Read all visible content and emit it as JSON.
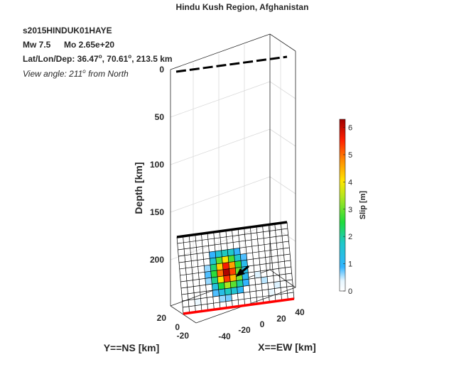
{
  "title": "Hindu Kush Region, Afghanistan",
  "event_id": "s2015HINDUK01HAYE",
  "magnitude": "Mw 7.5",
  "moment": "Mo 2.65e+20",
  "location": {
    "prefix": "Lat/Lon/Dep: ",
    "lat": "36.47",
    "lon": "70.61",
    "dep_suffix": ", 213.5 km",
    "degree_mark": "o"
  },
  "view_angle": {
    "prefix": "View angle: 211",
    "degree_mark": "o",
    "suffix": " from North"
  },
  "colors": {
    "top_edge": "#000000",
    "bottom_edge": "#ff0000",
    "arrow": "#000000",
    "grid": "#000000"
  },
  "chart_data": {
    "type": "heatmap",
    "zlabel": "Depth [km]",
    "xlabel": "X==EW [km]",
    "ylabel": "Y==NS [km]",
    "z_ticks": [
      "0",
      "50",
      "100",
      "150",
      "200"
    ],
    "x_ticks": [
      "-40",
      "-20",
      "0",
      "20",
      "40"
    ],
    "y_ticks": [
      "20",
      "0",
      "-20"
    ],
    "colorbar": {
      "label": "Slip [m]",
      "ticks": [
        "0",
        "1",
        "2",
        "3",
        "4",
        "5",
        "6"
      ],
      "range": [
        0,
        6.3
      ]
    },
    "grid_cols": 18,
    "grid_rows": 12,
    "slip_cells": [
      [
        5,
        3,
        0.9
      ],
      [
        6,
        3,
        1.6
      ],
      [
        7,
        3,
        1.8
      ],
      [
        8,
        3,
        1.7
      ],
      [
        9,
        3,
        0.9
      ],
      [
        5,
        4,
        1.6
      ],
      [
        6,
        4,
        2.9
      ],
      [
        7,
        4,
        4.0
      ],
      [
        8,
        4,
        2.8
      ],
      [
        9,
        4,
        1.7
      ],
      [
        10,
        4,
        0.8
      ],
      [
        4,
        5,
        0.6
      ],
      [
        5,
        5,
        2.2
      ],
      [
        6,
        5,
        4.2
      ],
      [
        7,
        5,
        5.6
      ],
      [
        8,
        5,
        4.6
      ],
      [
        9,
        5,
        2.6
      ],
      [
        10,
        5,
        1.2
      ],
      [
        4,
        6,
        0.8
      ],
      [
        5,
        6,
        2.6
      ],
      [
        6,
        6,
        5.0
      ],
      [
        7,
        6,
        6.2
      ],
      [
        8,
        6,
        5.3
      ],
      [
        9,
        6,
        3.0
      ],
      [
        10,
        6,
        1.3
      ],
      [
        4,
        7,
        0.6
      ],
      [
        5,
        7,
        2.1
      ],
      [
        6,
        7,
        4.0
      ],
      [
        7,
        7,
        5.4
      ],
      [
        8,
        7,
        4.4
      ],
      [
        9,
        7,
        3.1
      ],
      [
        10,
        7,
        1.1
      ],
      [
        5,
        8,
        1.4
      ],
      [
        6,
        8,
        2.5
      ],
      [
        7,
        8,
        3.4
      ],
      [
        8,
        8,
        2.9
      ],
      [
        9,
        8,
        2.0
      ],
      [
        10,
        8,
        0.9
      ],
      [
        5,
        9,
        0.8
      ],
      [
        6,
        9,
        1.3
      ],
      [
        7,
        9,
        1.8
      ],
      [
        8,
        9,
        1.6
      ],
      [
        9,
        9,
        1.0
      ],
      [
        6,
        10,
        0.6
      ],
      [
        7,
        10,
        0.7
      ],
      [
        12,
        7,
        0.4
      ],
      [
        13,
        8,
        0.5
      ],
      [
        15,
        9,
        0.4
      ],
      [
        14,
        10,
        0.3
      ],
      [
        2,
        10,
        0.3
      ]
    ]
  }
}
